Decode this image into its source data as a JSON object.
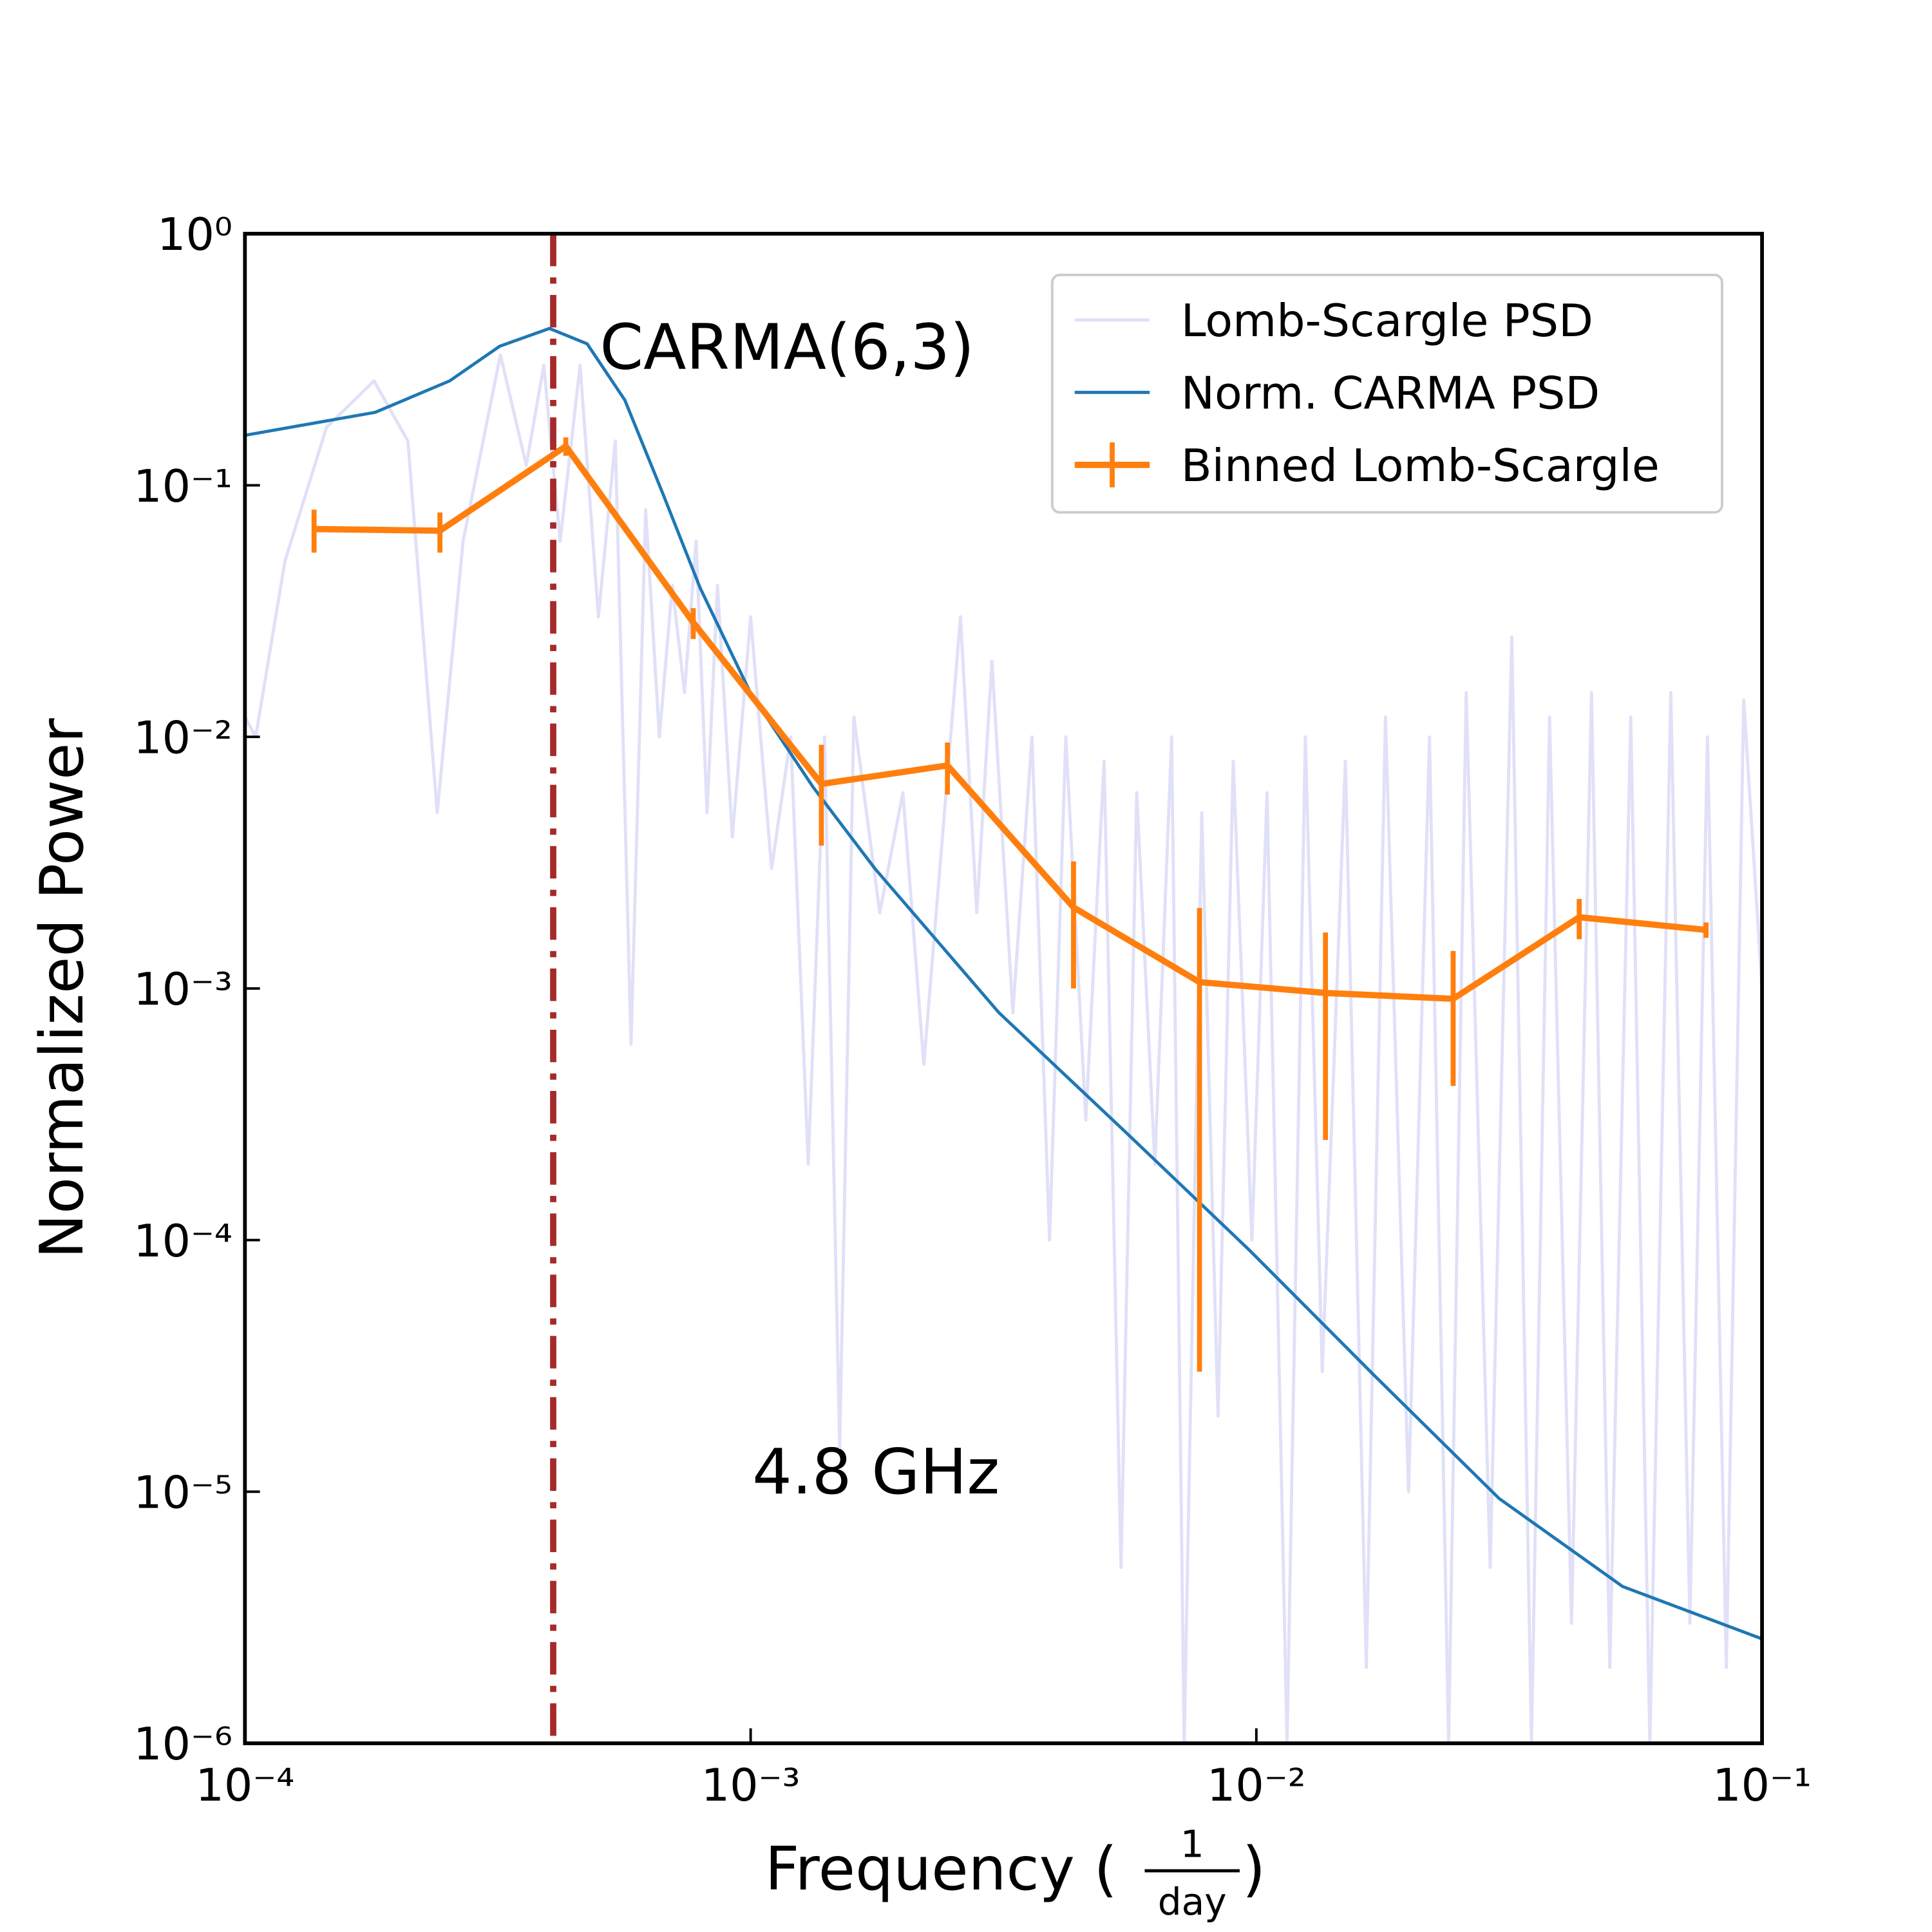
{
  "chart_data": {
    "type": "line",
    "xlabel": "Frequency (",
    "xlabel_fraction": [
      "1",
      "day"
    ],
    "xlabel_close": ")",
    "ylabel": "Normalized Power",
    "annotations": [
      {
        "text": "CARMA(6,3)"
      },
      {
        "text": "4.8 GHz"
      }
    ],
    "xscale": "log",
    "yscale": "log",
    "xlim": [
      0.0001,
      0.1
    ],
    "ylim": [
      1e-06,
      1
    ],
    "xticks": [
      {
        "value": 0.0001,
        "label": "10⁻⁴"
      },
      {
        "value": 0.001,
        "label": "10⁻³"
      },
      {
        "value": 0.01,
        "label": "10⁻²"
      },
      {
        "value": 0.1,
        "label": "10⁻¹"
      }
    ],
    "yticks": [
      {
        "value": 1e-06,
        "label": "10⁻⁶"
      },
      {
        "value": 1e-05,
        "label": "10⁻⁵"
      },
      {
        "value": 0.0001,
        "label": "10⁻⁴"
      },
      {
        "value": 0.001,
        "label": "10⁻³"
      },
      {
        "value": 0.01,
        "label": "10⁻²"
      },
      {
        "value": 0.1,
        "label": "10⁻¹"
      },
      {
        "value": 1,
        "label": "10⁰"
      }
    ],
    "grid": false,
    "legend": "upper right",
    "vline": {
      "x": 0.000407,
      "color": "#a52a2a"
    },
    "series": [
      {
        "name": "Lomb-Scargle PSD",
        "color": "#e0e0f8",
        "x": [
          0.0001,
          0.000105,
          0.00012,
          0.000145,
          0.00018,
          0.00021,
          0.00024,
          0.00027,
          0.00032,
          0.00036,
          0.00039,
          0.00042,
          0.00046,
          0.0005,
          0.00054,
          0.00058,
          0.00062,
          0.00066,
          0.0007,
          0.00074,
          0.00078,
          0.00082,
          0.00086,
          0.00092,
          0.001,
          0.0011,
          0.0012,
          0.0013,
          0.0014,
          0.0015,
          0.0016,
          0.0018,
          0.002,
          0.0022,
          0.0026,
          0.0028,
          0.003,
          0.0033,
          0.0036,
          0.0039,
          0.0042,
          0.0046,
          0.005,
          0.0054,
          0.0058,
          0.0063,
          0.0068,
          0.0072,
          0.0078,
          0.0084,
          0.009,
          0.0098,
          0.0105,
          0.0115,
          0.0125,
          0.0135,
          0.015,
          0.0165,
          0.018,
          0.02,
          0.022,
          0.024,
          0.026,
          0.029,
          0.032,
          0.035,
          0.038,
          0.042,
          0.046,
          0.05,
          0.055,
          0.06,
          0.066,
          0.072,
          0.078,
          0.085,
          0.092,
          0.1
        ],
        "values": [
          0.012,
          0.01,
          0.05,
          0.17,
          0.26,
          0.15,
          0.005,
          0.06,
          0.33,
          0.12,
          0.3,
          0.06,
          0.3,
          0.03,
          0.15,
          0.0006,
          0.08,
          0.01,
          0.04,
          0.015,
          0.06,
          0.005,
          0.04,
          0.004,
          0.03,
          0.003,
          0.01,
          0.0002,
          0.01,
          1.5e-05,
          0.012,
          0.002,
          0.006,
          0.0005,
          0.03,
          0.002,
          0.02,
          0.0008,
          0.01,
          0.0001,
          0.01,
          0.0003,
          0.008,
          5e-06,
          0.006,
          0.0002,
          0.01,
          1e-06,
          0.005,
          2e-05,
          0.008,
          0.0001,
          0.006,
          1e-06,
          0.01,
          3e-05,
          0.008,
          2e-06,
          0.012,
          1e-05,
          0.01,
          1e-06,
          0.015,
          5e-06,
          0.025,
          1e-06,
          0.012,
          3e-06,
          0.015,
          2e-06,
          0.012,
          1e-06,
          0.015,
          3e-06,
          0.01,
          2e-06,
          0.014,
          0.001
        ]
      },
      {
        "name": "Norm. CARMA PSD",
        "color": "#1f77b4",
        "x": [
          0.0001,
          0.000181,
          0.000254,
          0.000319,
          0.0004,
          0.000475,
          0.000564,
          0.00067,
          0.000795,
          0.001,
          0.00133,
          0.00176,
          0.0031,
          0.0055,
          0.0097,
          0.0171,
          0.0302,
          0.053,
          0.1
        ],
        "values": [
          0.158,
          0.195,
          0.26,
          0.357,
          0.42,
          0.365,
          0.218,
          0.093,
          0.039,
          0.0149,
          0.0063,
          0.003,
          0.0008,
          0.00027,
          9.1e-05,
          2.9e-05,
          9.4e-06,
          4.2e-06,
          2.6e-06
        ]
      },
      {
        "name": "Binned Lomb-Scargle",
        "color": "#ff7f0e",
        "x": [
          0.000137,
          0.000243,
          0.000431,
          0.00077,
          0.00138,
          0.00245,
          0.00435,
          0.00772,
          0.0137,
          0.0245,
          0.0435,
          0.0775
        ],
        "values": [
          0.067,
          0.066,
          0.143,
          0.0285,
          0.0065,
          0.0077,
          0.0021,
          0.00106,
          0.00096,
          0.00091,
          0.00192,
          0.00171
        ],
        "errors": [
          0.013,
          0.012,
          0.012,
          0.004,
          0.0028,
          0.0018,
          0.0011,
          0.00103,
          0.00071,
          0.0005,
          0.00035,
          0.00012
        ]
      }
    ]
  }
}
